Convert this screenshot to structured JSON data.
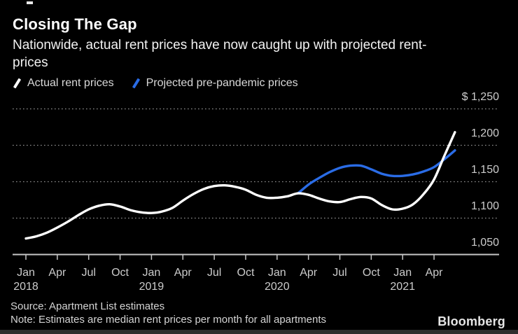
{
  "header": {
    "title": "Closing The Gap",
    "subtitle_lines": [
      "Nationwide, actual rent prices have now caught up with projected rent-",
      "prices"
    ]
  },
  "legend": {
    "items": [
      {
        "label": "Actual rent prices",
        "color": "#ffffff"
      },
      {
        "label": "Projected pre-pandemic prices",
        "color": "#2a6ce6"
      }
    ]
  },
  "footer": {
    "source": "Source: Apartment List estimates",
    "note": "Note: Estimates are median rent prices per month for all apartments",
    "brand": "Bloomberg"
  },
  "chart_data": {
    "type": "line",
    "title": "Closing The Gap",
    "x_unit": "month",
    "x_range": [
      "2018-01",
      "2021-06"
    ],
    "x_ticks": [
      {
        "month": "Jan",
        "year": "2018"
      },
      {
        "month": "Apr"
      },
      {
        "month": "Jul"
      },
      {
        "month": "Oct"
      },
      {
        "month": "Jan",
        "year": "2019"
      },
      {
        "month": "Apr"
      },
      {
        "month": "Jul"
      },
      {
        "month": "Oct"
      },
      {
        "month": "Jan",
        "year": "2020"
      },
      {
        "month": "Apr"
      },
      {
        "month": "Jul"
      },
      {
        "month": "Oct"
      },
      {
        "month": "Jan",
        "year": "2021"
      },
      {
        "month": "Apr"
      }
    ],
    "y_axis": {
      "ticks": [
        1050,
        1100,
        1150,
        1200,
        1250
      ],
      "labels": [
        "1,050",
        "1,100",
        "1,150",
        "1,200",
        "$ 1,250"
      ]
    },
    "ylim": [
      1050,
      1250
    ],
    "grid": "horizontal-dotted",
    "legend_position": "top-left",
    "colors": {
      "grid": "#8f8f8f",
      "axis": "#c6c6c6",
      "background": "#000000"
    },
    "series": [
      {
        "name": "Actual rent prices",
        "color": "#ffffff",
        "start_month": "2018-01",
        "start_index": 0,
        "values": [
          1072,
          1075,
          1080,
          1087,
          1095,
          1104,
          1112,
          1117,
          1119,
          1116,
          1111,
          1108,
          1107,
          1109,
          1114,
          1124,
          1133,
          1140,
          1144,
          1145,
          1143,
          1139,
          1132,
          1128,
          1128,
          1130,
          1134,
          1132,
          1127,
          1123,
          1122,
          1126,
          1129,
          1127,
          1118,
          1112,
          1113,
          1119,
          1133,
          1153,
          1186,
          1218
        ]
      },
      {
        "name": "Projected pre-pandemic prices",
        "color": "#2a6ce6",
        "start_month": "2020-03",
        "start_index": 26,
        "values": [
          1134,
          1146,
          1155,
          1163,
          1169,
          1172,
          1172,
          1167,
          1161,
          1158,
          1158,
          1160,
          1164,
          1170,
          1181,
          1193
        ]
      }
    ]
  }
}
